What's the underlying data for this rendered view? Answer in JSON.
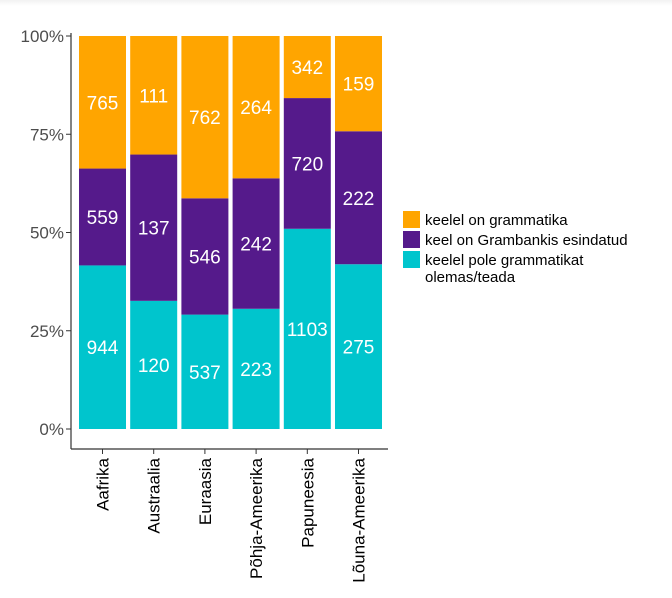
{
  "chart_data": {
    "type": "bar",
    "stacked": true,
    "normalized": true,
    "categories": [
      "Aafrika",
      "Austraalia",
      "Euraasia",
      "Põhja-Ameerika",
      "Papuneesia",
      "Lõuna-Ameerika"
    ],
    "series": [
      {
        "name": "keelel pole grammatikat olemas/teada",
        "legend_lines": [
          "keelel pole grammatikat",
          "olemas/teada"
        ],
        "color": "#00C5CD",
        "values": [
          944,
          120,
          537,
          223,
          1103,
          275
        ]
      },
      {
        "name": "keel on Grambankis esindatud",
        "legend_lines": [
          "keel on Grambankis esindatud"
        ],
        "color": "#551A8B",
        "values": [
          559,
          137,
          546,
          242,
          720,
          222
        ]
      },
      {
        "name": "keelel on grammatika",
        "legend_lines": [
          "keelel on grammatika"
        ],
        "color": "#FFA500",
        "values": [
          765,
          111,
          762,
          264,
          342,
          159
        ]
      }
    ],
    "legend_order": [
      2,
      1,
      0
    ],
    "y_ticks": [
      "0%",
      "25%",
      "50%",
      "75%",
      "100%"
    ],
    "ylim": [
      0,
      1
    ],
    "xlabel": "",
    "ylabel": "",
    "title": "",
    "grid": false,
    "legend_position": "right"
  }
}
